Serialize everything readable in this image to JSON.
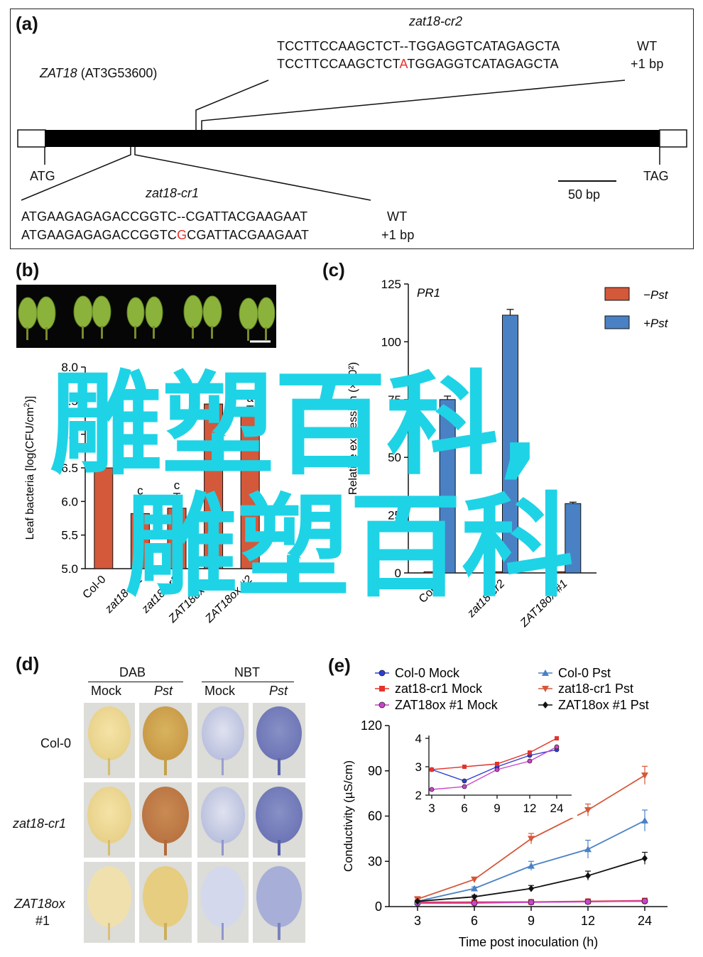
{
  "panel_a": {
    "label": "a",
    "gene_name": "ZAT18",
    "gene_locus": "(AT3G53600)",
    "start": "ATG",
    "stop": "TAG",
    "scale": "50 bp",
    "cr2": {
      "name": "zat18-cr2",
      "wt_left": "TCCTTCCAAGCTCT--TGGAGGTCATAGAGCTA",
      "mut_pre": "TCCTTCCAAGCTCT",
      "mut_ins": "A",
      "mut_post": "TGGAGGTCATAGAGCTA",
      "wt_tag": "WT",
      "mut_tag": "+1 bp"
    },
    "cr1": {
      "name": "zat18-cr1",
      "wt_left": "ATGAAGAGAGACCGGTC--CGATTACGAAGAAT",
      "mut_pre": "ATGAAGAGAGACCGGTC",
      "mut_ins": "G",
      "mut_post": "CGATTACGAAGAAT",
      "wt_tag": "WT",
      "mut_tag": "+1 bp"
    }
  },
  "panel_b": {
    "label": "b"
  },
  "panel_c": {
    "label": "c"
  },
  "panel_d": {
    "label": "d",
    "groups": [
      "DAB",
      "NBT"
    ],
    "cols": [
      "Mock",
      "Pst",
      "Mock",
      "Pst"
    ],
    "rows": [
      {
        "name": "Col-0",
        "suffix": ""
      },
      {
        "name": "zat18-cr1",
        "suffix": ""
      },
      {
        "name": "ZAT18ox",
        "suffix": "#1"
      }
    ]
  },
  "panel_e": {
    "label": "e"
  },
  "watermark": {
    "line1": "雕塑百科,",
    "line2": "雕塑百科"
  },
  "chart_data": [
    {
      "id": "b",
      "type": "bar",
      "categories": [
        "Col-0",
        "zat18-cr1",
        "zat18-cr2",
        "ZAT18ox #1",
        "ZAT18ox #2"
      ],
      "values": [
        6.5,
        5.82,
        5.9,
        7.45,
        7.3
      ],
      "errors": [
        0.1,
        0.22,
        0.22,
        0.12,
        0.12
      ],
      "letters": [
        "b",
        "c",
        "c",
        "a",
        "a"
      ],
      "ylabel": "Leaf bacteria [log(CFU/cm2)]",
      "ylim": [
        5.0,
        8.0
      ],
      "yticks": [
        "5.0",
        "5.5",
        "6.0",
        "6.5",
        "7.0",
        "7.5",
        "8.0"
      ],
      "color": "#d4583a"
    },
    {
      "id": "c",
      "type": "bar",
      "title": "PR1",
      "categories": [
        "Col-0",
        "zat18-cr2",
        "ZAT18ox #1"
      ],
      "series": [
        {
          "name": "−Pst",
          "values": [
            0.5,
            0.5,
            0.5
          ],
          "color": "#d4583a"
        },
        {
          "name": "+Pst",
          "values": [
            75,
            111.5,
            30
          ],
          "errors": [
            1.5,
            2.5,
            0.6
          ],
          "color": "#4a81c4"
        }
      ],
      "ylabel": "Relative expression (×10²)",
      "ylim": [
        0,
        125
      ],
      "yticks": [
        "0",
        "25",
        "50",
        "75",
        "100",
        "125"
      ],
      "legend": "top-right"
    },
    {
      "id": "e",
      "type": "line",
      "x": [
        3,
        6,
        9,
        12,
        24
      ],
      "xlabel": "Time post inoculation (h)",
      "ylabel": "Conductivity (µS/cm)",
      "ylim": [
        0,
        120
      ],
      "yticks": [
        "0",
        "30",
        "60",
        "90",
        "120"
      ],
      "xticks": [
        "3",
        "6",
        "9",
        "12",
        "24"
      ],
      "legend": "top",
      "series": [
        {
          "name": "Col-0 Mock",
          "values": [
            2.9,
            2.5,
            3.0,
            3.4,
            3.6
          ],
          "color": "#2e3dd6",
          "marker": "circle"
        },
        {
          "name": "zat18-cr1 Mock",
          "values": [
            2.9,
            3.0,
            3.1,
            3.5,
            4.0
          ],
          "color": "#e3332c",
          "marker": "square"
        },
        {
          "name": "ZAT18ox #1 Mock",
          "values": [
            2.2,
            2.3,
            2.9,
            3.2,
            3.7
          ],
          "color": "#cc44cc",
          "marker": "circle"
        },
        {
          "name": "Col-0 Pst",
          "values": [
            3.5,
            12,
            27,
            38,
            57
          ],
          "errors": [
            0.5,
            1,
            3,
            6,
            7
          ],
          "color": "#4a81c4",
          "marker": "triangle"
        },
        {
          "name": "zat18-cr1 Pst",
          "values": [
            5,
            18,
            45,
            64,
            87
          ],
          "errors": [
            0.7,
            1.5,
            3.5,
            4,
            6
          ],
          "color": "#d4583a",
          "marker": "triangle-down"
        },
        {
          "name": "ZAT18ox #1 Pst",
          "values": [
            3.5,
            6.5,
            12,
            20.5,
            32
          ],
          "errors": [
            0.4,
            1,
            2,
            3,
            4
          ],
          "color": "#111111",
          "marker": "diamond"
        }
      ],
      "inset": {
        "ylim": [
          2,
          4
        ],
        "yticks": [
          "2",
          "3",
          "4"
        ],
        "xticks": [
          "3",
          "6",
          "9",
          "12",
          "24"
        ]
      }
    }
  ]
}
